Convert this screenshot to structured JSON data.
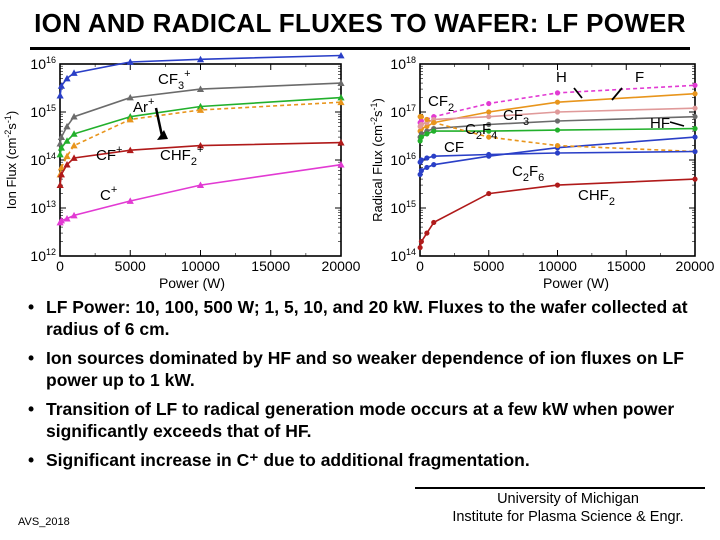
{
  "slide_title": "ION AND RADICAL FLUXES TO WAFER: LF POWER",
  "bullets": [
    "LF Power: 10, 100, 500 W;  1, 5, 10, and 20 kW. Fluxes to the wafer collected at radius of 6 cm.",
    "Ion sources dominated by HF and so weaker dependence of ion fluxes on LF power up to 1 kW.",
    "Transition of LF to radical generation mode occurs at a few kW when power significantly exceeds that of HF.",
    "Significant increase in C⁺ due to additional fragmentation."
  ],
  "bullet_symbol": "•",
  "footer": {
    "left": "AVS_2018",
    "right_line1": "University of Michigan",
    "right_line2": "Institute for Plasma Science & Engr."
  },
  "chart_data": [
    {
      "type": "line",
      "xlabel": "Power (W)",
      "ylabel_base": "Ion Flux (cm",
      "ylabel_sup": "-2",
      "ylabel_mid": "s",
      "ylabel_sup2": "-1",
      "ylabel_end": ")",
      "y_log": true,
      "xlim": [
        0,
        20000
      ],
      "ylim_exp": [
        12,
        16
      ],
      "x_ticks": [
        "0",
        "5000",
        "10000",
        "15000",
        "20000"
      ],
      "y_tick_base": "10",
      "y_tick_exps": [
        "12",
        "13",
        "14",
        "15",
        "16"
      ],
      "x": [
        10,
        100,
        500,
        1000,
        5000,
        10000,
        20000
      ],
      "series": [
        {
          "name": "CF3+",
          "label_base": "CF",
          "label_sub": "3",
          "label_sup": "+",
          "color": "#2a3fc7",
          "marker": "triangle",
          "dashed": false,
          "values": [
            2200000000000000.0,
            3500000000000000.0,
            5000000000000000.0,
            6500000000000000.0,
            1.1e+16,
            1.25e+16,
            1.5e+16
          ]
        },
        {
          "name": "Ar+",
          "label_base": "Ar",
          "label_sub": "",
          "label_sup": "+",
          "color": "#6b6b6b",
          "marker": "triangle",
          "dashed": false,
          "values": [
            220000000000000.0,
            300000000000000.0,
            500000000000000.0,
            800000000000000.0,
            2000000000000000.0,
            3000000000000000.0,
            4000000000000000.0
          ]
        },
        {
          "name": "CF+",
          "label_base": "CF",
          "label_sub": "",
          "label_sup": "+",
          "color": "#22b02c",
          "marker": "triangle",
          "dashed": false,
          "values": [
            130000000000000.0,
            180000000000000.0,
            250000000000000.0,
            350000000000000.0,
            800000000000000.0,
            1300000000000000.0,
            2000000000000000.0
          ]
        },
        {
          "name": "series-orange",
          "label_base": "",
          "label_sub": "",
          "label_sup": "",
          "color": "#e8951c",
          "marker": "triangle",
          "dashed": true,
          "values": [
            50000000000000.0,
            70000000000000.0,
            120000000000000.0,
            200000000000000.0,
            700000000000000.0,
            1100000000000000.0,
            1600000000000000.0
          ]
        },
        {
          "name": "CHF2+",
          "label_base": "CHF",
          "label_sub": "2",
          "label_sup": "+",
          "color": "#b01a1a",
          "marker": "triangle",
          "dashed": false,
          "values": [
            30000000000000.0,
            50000000000000.0,
            80000000000000.0,
            110000000000000.0,
            160000000000000.0,
            200000000000000.0,
            230000000000000.0
          ]
        },
        {
          "name": "C+",
          "label_base": "C",
          "label_sub": "",
          "label_sup": "+",
          "color": "#e23ad3",
          "marker": "triangle",
          "dashed": false,
          "values": [
            5000000000000.0,
            5500000000000.0,
            6000000000000.0,
            7000000000000.0,
            14000000000000.0,
            30000000000000.0,
            80000000000000.0
          ]
        }
      ]
    },
    {
      "type": "line",
      "xlabel": "Power (W)",
      "ylabel_base": "Radical  Flux (cm",
      "ylabel_sup": "-2",
      "ylabel_mid": "s",
      "ylabel_sup2": "-1",
      "ylabel_end": ")",
      "y_log": true,
      "xlim": [
        0,
        20000
      ],
      "ylim_exp": [
        14,
        18
      ],
      "x_ticks": [
        "0",
        "5000",
        "10000",
        "15000",
        "20000"
      ],
      "y_tick_base": "10",
      "y_tick_exps": [
        "14",
        "15",
        "16",
        "17",
        "18"
      ],
      "x": [
        10,
        100,
        500,
        1000,
        5000,
        10000,
        20000
      ],
      "series": [
        {
          "name": "H",
          "label_base": "H",
          "label_sub": "",
          "label_sup": "",
          "color": "#e23ad3",
          "marker": "circle",
          "dashed": true,
          "values": [
            6e+16,
            6.5e+16,
            7e+16,
            8e+16,
            1.5e+17,
            2.5e+17,
            3.6e+17
          ]
        },
        {
          "name": "F",
          "label_base": "F",
          "label_sub": "",
          "label_sup": "",
          "color": "#e8951c",
          "marker": "circle",
          "dashed": false,
          "values": [
            4e+16,
            4.5e+16,
            5e+16,
            6e+16,
            1e+17,
            1.6e+17,
            2.4e+17
          ]
        },
        {
          "name": "CF2",
          "label_base": "CF",
          "label_sub": "2",
          "label_sup": "",
          "color": "#e09a9a",
          "marker": "circle",
          "dashed": false,
          "values": [
            5e+16,
            5.5e+16,
            6e+16,
            7e+16,
            8e+16,
            1e+17,
            1.2e+17
          ]
        },
        {
          "name": "CF3",
          "label_base": "CF",
          "label_sub": "3",
          "label_sup": "",
          "color": "#6b6b6b",
          "marker": "circle",
          "dashed": false,
          "values": [
            3e+16,
            3.5e+16,
            4e+16,
            4.5e+16,
            5.5e+16,
            6.5e+16,
            8e+16
          ]
        },
        {
          "name": "C2F4",
          "label_base": "C",
          "label_sub": "2",
          "label_sup": "",
          "label_base2": "F",
          "label_sub2": "4",
          "color": "#22b02c",
          "marker": "circle",
          "dashed": false,
          "values": [
            2.5e+16,
            3e+16,
            3.5e+16,
            4e+16,
            4e+16,
            4.2e+16,
            4.5e+16
          ]
        },
        {
          "name": "CF",
          "label_base": "CF",
          "label_sub": "",
          "label_sup": "",
          "color": "#2a3fc7",
          "marker": "circle",
          "dashed": false,
          "values": [
            5000000000000000.0,
            6000000000000000.0,
            7000000000000000.0,
            8000000000000000.0,
            1.2e+16,
            1.8e+16,
            3e+16
          ]
        },
        {
          "name": "HF",
          "label_base": "HF",
          "label_sub": "",
          "label_sup": "",
          "color": "#e8951c",
          "marker": "circle",
          "dashed": true,
          "values": [
            8e+16,
            8e+16,
            7e+16,
            6e+16,
            3e+16,
            2e+16,
            1.5e+16
          ]
        },
        {
          "name": "C2F6",
          "label_base": "C",
          "label_sub": "2",
          "label_sup": "",
          "label_base2": "F",
          "label_sub2": "6",
          "color": "#2a3fc7",
          "marker": "circle",
          "dashed": false,
          "values": [
            9000000000000000.0,
            1e+16,
            1.1e+16,
            1.2e+16,
            1.3e+16,
            1.4e+16,
            1.5e+16
          ]
        },
        {
          "name": "CHF2",
          "label_base": "CHF",
          "label_sub": "2",
          "label_sup": "",
          "color": "#b01a1a",
          "marker": "circle",
          "dashed": false,
          "values": [
            150000000000000.0,
            200000000000000.0,
            300000000000000.0,
            500000000000000.0,
            2000000000000000.0,
            3000000000000000.0,
            4000000000000000.0
          ]
        }
      ]
    }
  ]
}
